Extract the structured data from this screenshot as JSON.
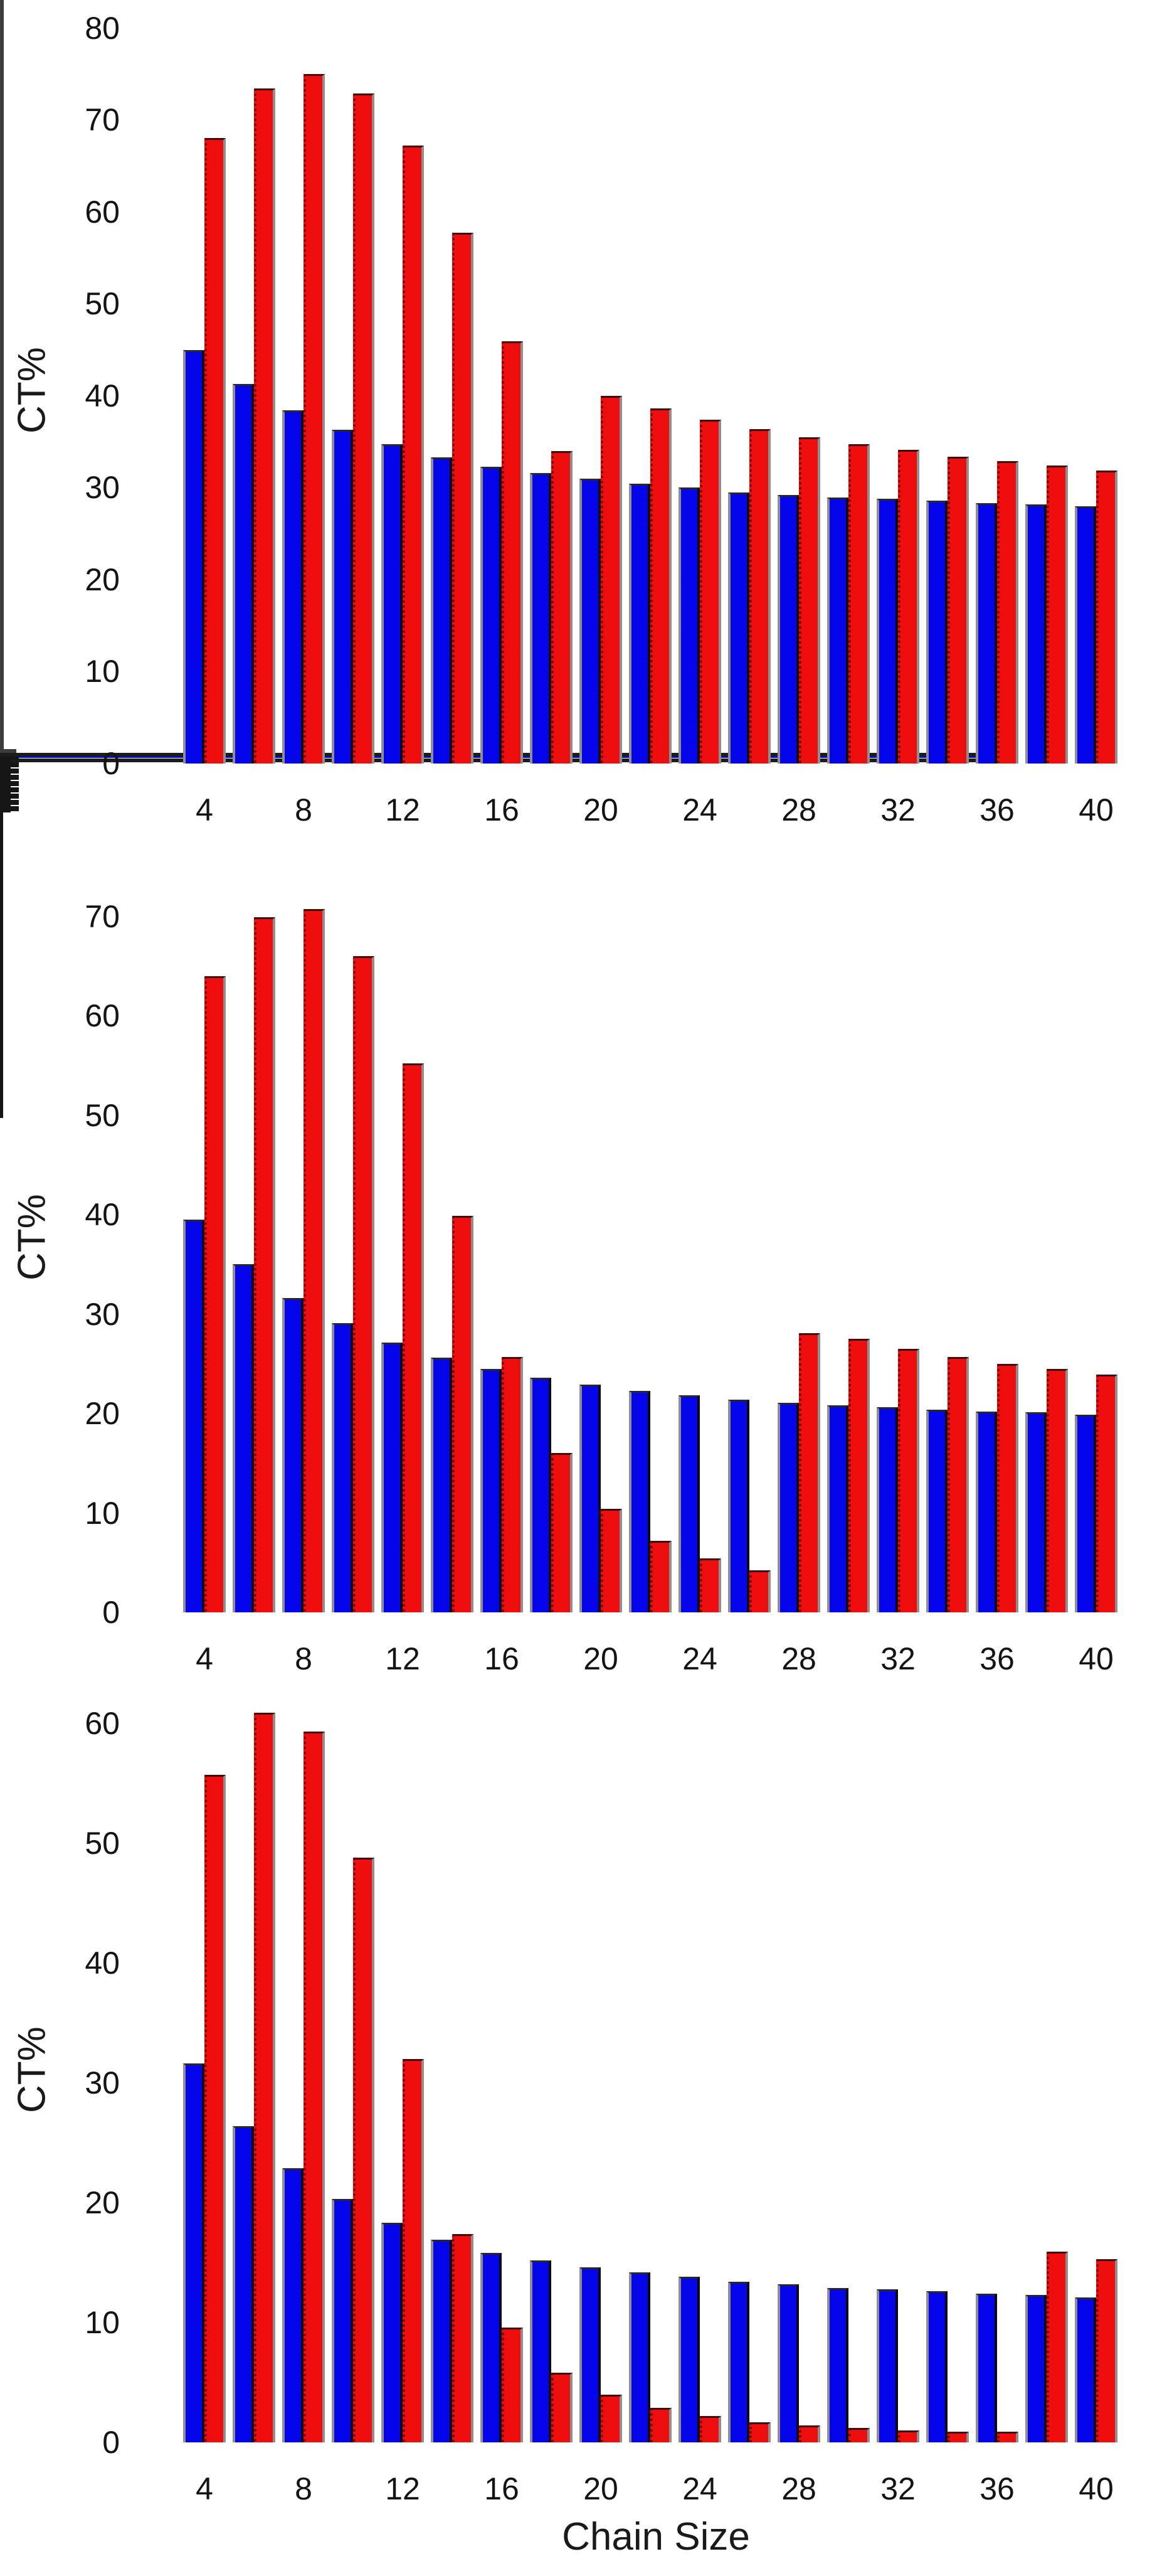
{
  "figure": {
    "background": "#ffffff",
    "ylabel": "CT%",
    "xlabel": "Chain Size",
    "colors": {
      "blue_bar": "#0505EC",
      "red_bar": "#EE0E0E",
      "red_bar_edge": "#7C0000",
      "axis": "#3C3C3C",
      "text": "#141414",
      "top_chart_baseline": "#0202F0"
    }
  },
  "chart_data": [
    {
      "type": "bar",
      "panel": "top",
      "title": "",
      "ylabel": "CT%",
      "xlabel": "",
      "categories": [
        4,
        6,
        8,
        10,
        12,
        14,
        16,
        18,
        20,
        22,
        24,
        26,
        28,
        30,
        32,
        34,
        36,
        38,
        40
      ],
      "series": [
        {
          "name": "blue",
          "color": "#0505EC",
          "values": [
            45.0,
            41.3,
            38.4,
            36.3,
            34.7,
            33.3,
            32.3,
            31.6,
            31.0,
            30.4,
            30.0,
            29.5,
            29.2,
            28.9,
            28.8,
            28.6,
            28.3,
            28.2,
            28.0
          ]
        },
        {
          "name": "red",
          "color": "#EE0E0E",
          "values": [
            68.0,
            73.4,
            75.0,
            72.9,
            67.2,
            57.7,
            45.9,
            34.0,
            40.0,
            38.6,
            37.4,
            36.4,
            35.5,
            34.7,
            34.1,
            33.4,
            32.9,
            32.4,
            31.9
          ]
        }
      ],
      "ylim": [
        0,
        80
      ],
      "yticks": [
        0,
        10,
        20,
        30,
        40,
        50,
        60,
        70,
        80
      ],
      "ytick_minor_step": 5,
      "xlim": [
        2,
        42
      ],
      "xticks": [
        4,
        8,
        12,
        16,
        20,
        24,
        28,
        32,
        36,
        40
      ],
      "xtick_minor_step": 2,
      "grid": false,
      "legend": "none",
      "baseline_color": "#0202F0"
    },
    {
      "type": "bar",
      "panel": "middle",
      "title": "",
      "ylabel": "CT%",
      "xlabel": "",
      "categories": [
        4,
        6,
        8,
        10,
        12,
        14,
        16,
        18,
        20,
        22,
        24,
        26,
        28,
        30,
        32,
        34,
        36,
        38,
        40
      ],
      "series": [
        {
          "name": "blue",
          "color": "#0505EC",
          "values": [
            39.5,
            35.0,
            31.6,
            29.1,
            27.1,
            25.6,
            24.5,
            23.6,
            22.9,
            22.3,
            21.8,
            21.4,
            21.1,
            20.8,
            20.6,
            20.4,
            20.2,
            20.1,
            19.9
          ]
        },
        {
          "name": "red",
          "color": "#EE0E0E",
          "values": [
            64.0,
            69.9,
            70.7,
            66.0,
            55.2,
            39.9,
            25.7,
            16.0,
            10.4,
            7.2,
            5.4,
            4.2,
            28.1,
            27.5,
            26.5,
            25.7,
            25.0,
            24.5,
            23.9
          ]
        }
      ],
      "ylim": [
        0,
        70
      ],
      "yticks": [
        0,
        10,
        20,
        30,
        40,
        50,
        60,
        70
      ],
      "ytick_minor_step": 5,
      "xlim": [
        2,
        42
      ],
      "xticks": [
        4,
        8,
        12,
        16,
        20,
        24,
        28,
        32,
        36,
        40
      ],
      "xtick_minor_step": 2,
      "grid": false,
      "legend": "none",
      "baseline_color": "#1C1C1C"
    },
    {
      "type": "bar",
      "panel": "bottom",
      "title": "",
      "ylabel": "CT%",
      "xlabel": "Chain Size",
      "categories": [
        4,
        6,
        8,
        10,
        12,
        14,
        16,
        18,
        20,
        22,
        24,
        26,
        28,
        30,
        32,
        34,
        36,
        38,
        40
      ],
      "series": [
        {
          "name": "blue",
          "color": "#0505EC",
          "values": [
            31.6,
            26.4,
            22.9,
            20.3,
            18.3,
            16.9,
            15.8,
            15.2,
            14.6,
            14.2,
            13.8,
            13.4,
            13.2,
            12.9,
            12.8,
            12.6,
            12.4,
            12.3,
            12.1
          ]
        },
        {
          "name": "red",
          "color": "#EE0E0E",
          "values": [
            55.7,
            60.9,
            59.3,
            48.8,
            32.0,
            17.4,
            9.6,
            5.8,
            4.0,
            2.9,
            2.2,
            1.7,
            1.4,
            1.2,
            1.0,
            0.9,
            0.9,
            15.9,
            15.3
          ]
        }
      ],
      "ylim": [
        0,
        60
      ],
      "yticks": [
        0,
        10,
        20,
        30,
        40,
        50,
        60
      ],
      "ytick_minor_step": 5,
      "xlim": [
        2,
        42
      ],
      "xticks": [
        4,
        8,
        12,
        16,
        20,
        24,
        28,
        32,
        36,
        40
      ],
      "xtick_minor_step": 2,
      "grid": false,
      "legend": "none",
      "baseline_color": "#1C1C1C"
    }
  ]
}
